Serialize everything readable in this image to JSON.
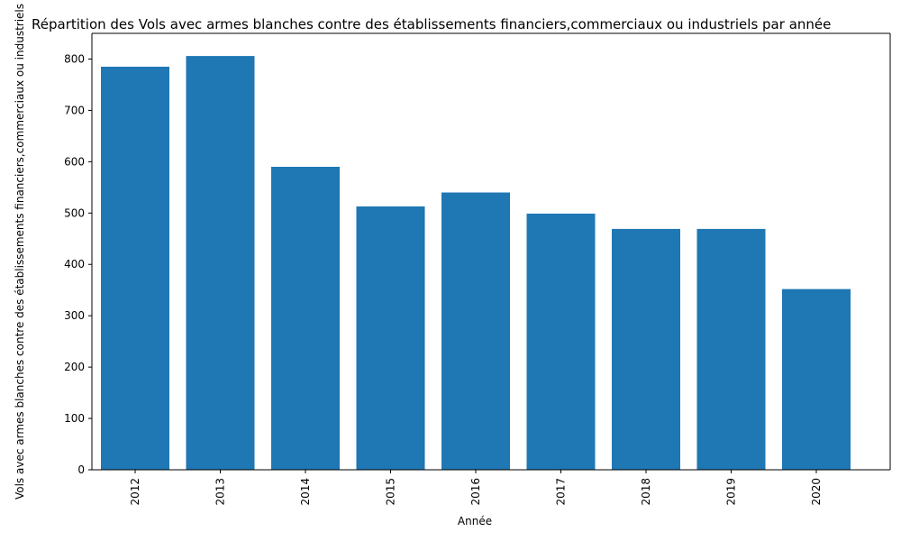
{
  "chart_data": {
    "type": "bar",
    "title": "Répartition des Vols avec armes blanches contre des établissements financiers,commerciaux ou industriels par année",
    "xlabel": "Année",
    "ylabel": "Vols avec armes blanches contre des établissements financiers,commerciaux ou industriels",
    "categories": [
      "2012",
      "2013",
      "2014",
      "2015",
      "2016",
      "2017",
      "2018",
      "2019",
      "2020"
    ],
    "values": [
      785,
      806,
      590,
      513,
      540,
      499,
      469,
      469,
      352
    ],
    "ylim": [
      0,
      850
    ],
    "yticks": [
      0,
      100,
      200,
      300,
      400,
      500,
      600,
      700,
      800
    ],
    "bar_color": "#1f77b4",
    "grid": false,
    "legend": "none"
  }
}
